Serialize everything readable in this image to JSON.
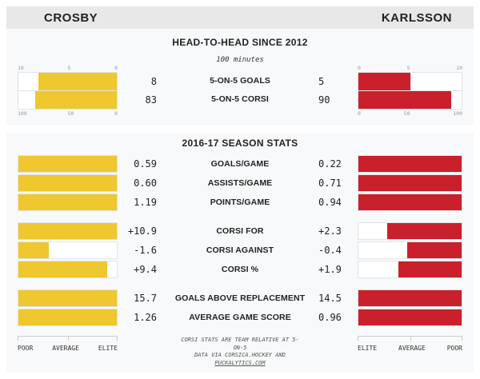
{
  "colors": {
    "crosby": "#efc72e",
    "karlsson": "#c9202b"
  },
  "header": {
    "left": "CROSBY",
    "right": "KARLSSON"
  },
  "h2h": {
    "title": "HEAD-TO-HEAD SINCE 2012",
    "subtitle": "100 minutes",
    "left_ticks_top": [
      "10",
      "5",
      "0"
    ],
    "left_ticks_bottom": [
      "100",
      "50",
      "0"
    ],
    "right_ticks_top": [
      "0",
      "5",
      "10"
    ],
    "right_ticks_bottom": [
      "0",
      "50",
      "100"
    ],
    "rows": [
      {
        "label": "5-ON-5 GOALS",
        "left": "8",
        "right": "5",
        "left_pct": 80,
        "right_pct": 50
      },
      {
        "label": "5-ON-5 CORSI",
        "left": "83",
        "right": "90",
        "left_pct": 83,
        "right_pct": 90
      }
    ]
  },
  "season": {
    "title": "2016-17 SEASON STATS",
    "rows": [
      {
        "label": "GOALS/GAME",
        "left": "0.59",
        "right": "0.22",
        "left_pct": 100,
        "right_pct": 100
      },
      {
        "label": "ASSISTS/GAME",
        "left": "0.60",
        "right": "0.71",
        "left_pct": 100,
        "right_pct": 100
      },
      {
        "label": "POINTS/GAME",
        "left": "1.19",
        "right": "0.94",
        "left_pct": 100,
        "right_pct": 100
      },
      {
        "label": "CORSI FOR",
        "left": "+10.9",
        "right": "+2.3",
        "left_pct": 100,
        "right_pct": 72
      },
      {
        "label": "CORSI AGAINST",
        "left": "-1.6",
        "right": "-0.4",
        "left_pct": 31,
        "right_pct": 53
      },
      {
        "label": "CORSI %",
        "left": "+9.4",
        "right": "+1.9",
        "left_pct": 90,
        "right_pct": 61
      },
      {
        "label": "GOALS ABOVE REPLACEMENT",
        "left": "15.7",
        "right": "14.5",
        "left_pct": 100,
        "right_pct": 100
      },
      {
        "label": "AVERAGE GAME SCORE",
        "left": "1.26",
        "right": "0.96",
        "left_pct": 100,
        "right_pct": 100
      }
    ]
  },
  "scale": {
    "left": [
      "POOR",
      "AVERAGE",
      "ELITE"
    ],
    "right": [
      "ELITE",
      "AVERAGE",
      "POOR"
    ]
  },
  "footer": {
    "line1": "CORSI STATS ARE TEAM RELATIVE AT 5-",
    "line2": "ON-5",
    "line3": "DATA VIA CORSICA.HOCKEY AND",
    "link": "PUCKALYTICS.COM"
  },
  "chart_data": [
    {
      "type": "bar",
      "title": "HEAD-TO-HEAD SINCE 2012",
      "subtitle": "100 minutes",
      "categories": [
        "5-ON-5 GOALS",
        "5-ON-5 CORSI"
      ],
      "series": [
        {
          "name": "CROSBY",
          "values": [
            8,
            83
          ]
        },
        {
          "name": "KARLSSON",
          "values": [
            5,
            90
          ]
        }
      ],
      "axis_range_goals": [
        0,
        10
      ],
      "axis_range_corsi": [
        0,
        100
      ],
      "layout": "mirrored horizontal bars, zero at inner edge",
      "colors": {
        "CROSBY": "#efc72e",
        "KARLSSON": "#c9202b"
      }
    },
    {
      "type": "bar",
      "title": "2016-17 SEASON STATS",
      "categories": [
        "GOALS/GAME",
        "ASSISTS/GAME",
        "POINTS/GAME",
        "CORSI FOR",
        "CORSI AGAINST",
        "CORSI %",
        "GOALS ABOVE REPLACEMENT",
        "AVERAGE GAME SCORE"
      ],
      "series": [
        {
          "name": "CROSBY",
          "values": [
            0.59,
            0.6,
            1.19,
            10.9,
            -1.6,
            9.4,
            15.7,
            1.26
          ],
          "bar_percentiles": [
            100,
            100,
            100,
            100,
            31,
            90,
            100,
            100
          ]
        },
        {
          "name": "KARLSSON",
          "values": [
            0.22,
            0.71,
            0.94,
            2.3,
            -0.4,
            1.9,
            14.5,
            0.96
          ],
          "bar_percentiles": [
            100,
            100,
            100,
            72,
            53,
            61,
            100,
            100
          ]
        }
      ],
      "xlabel_scale": [
        "POOR",
        "AVERAGE",
        "ELITE"
      ],
      "layout": "mirrored horizontal percentile bars, Crosby anchored left, Karlsson anchored right",
      "colors": {
        "CROSBY": "#efc72e",
        "KARLSSON": "#c9202b"
      }
    }
  ]
}
